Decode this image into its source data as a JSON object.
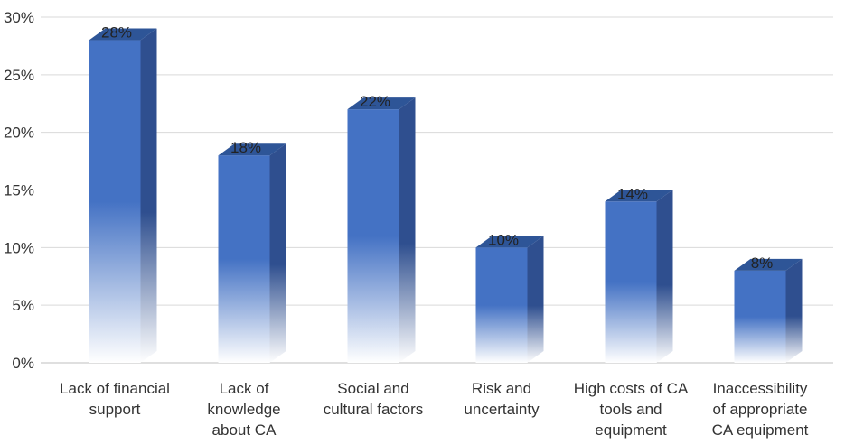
{
  "chart_data": {
    "type": "bar",
    "style": "3d-column-gradient",
    "categories": [
      [
        "Lack of financial",
        "support"
      ],
      [
        "Lack of",
        "knowledge",
        "about CA"
      ],
      [
        "Social and",
        "cultural factors"
      ],
      [
        "Risk and",
        "uncertainty"
      ],
      [
        "High costs of CA",
        "tools and",
        "equipment"
      ],
      [
        "Inaccessibility",
        "of appropriate",
        "CA equipment"
      ]
    ],
    "values": [
      28,
      18,
      22,
      10,
      14,
      8
    ],
    "data_labels": [
      "28%",
      "18%",
      "22%",
      "10%",
      "14%",
      "8%"
    ],
    "yticks": [
      0,
      5,
      10,
      15,
      20,
      25,
      30
    ],
    "ytick_labels": [
      "0%",
      "5%",
      "10%",
      "15%",
      "20%",
      "25%",
      "30%"
    ],
    "ylim": [
      0,
      30
    ],
    "grid": true,
    "legend": "none",
    "colors": {
      "front": "#4472c4",
      "side": "#2f4f8f",
      "top": "#2e5597",
      "grid": "#d9d9d9",
      "axis": "#bfbfbf"
    }
  }
}
